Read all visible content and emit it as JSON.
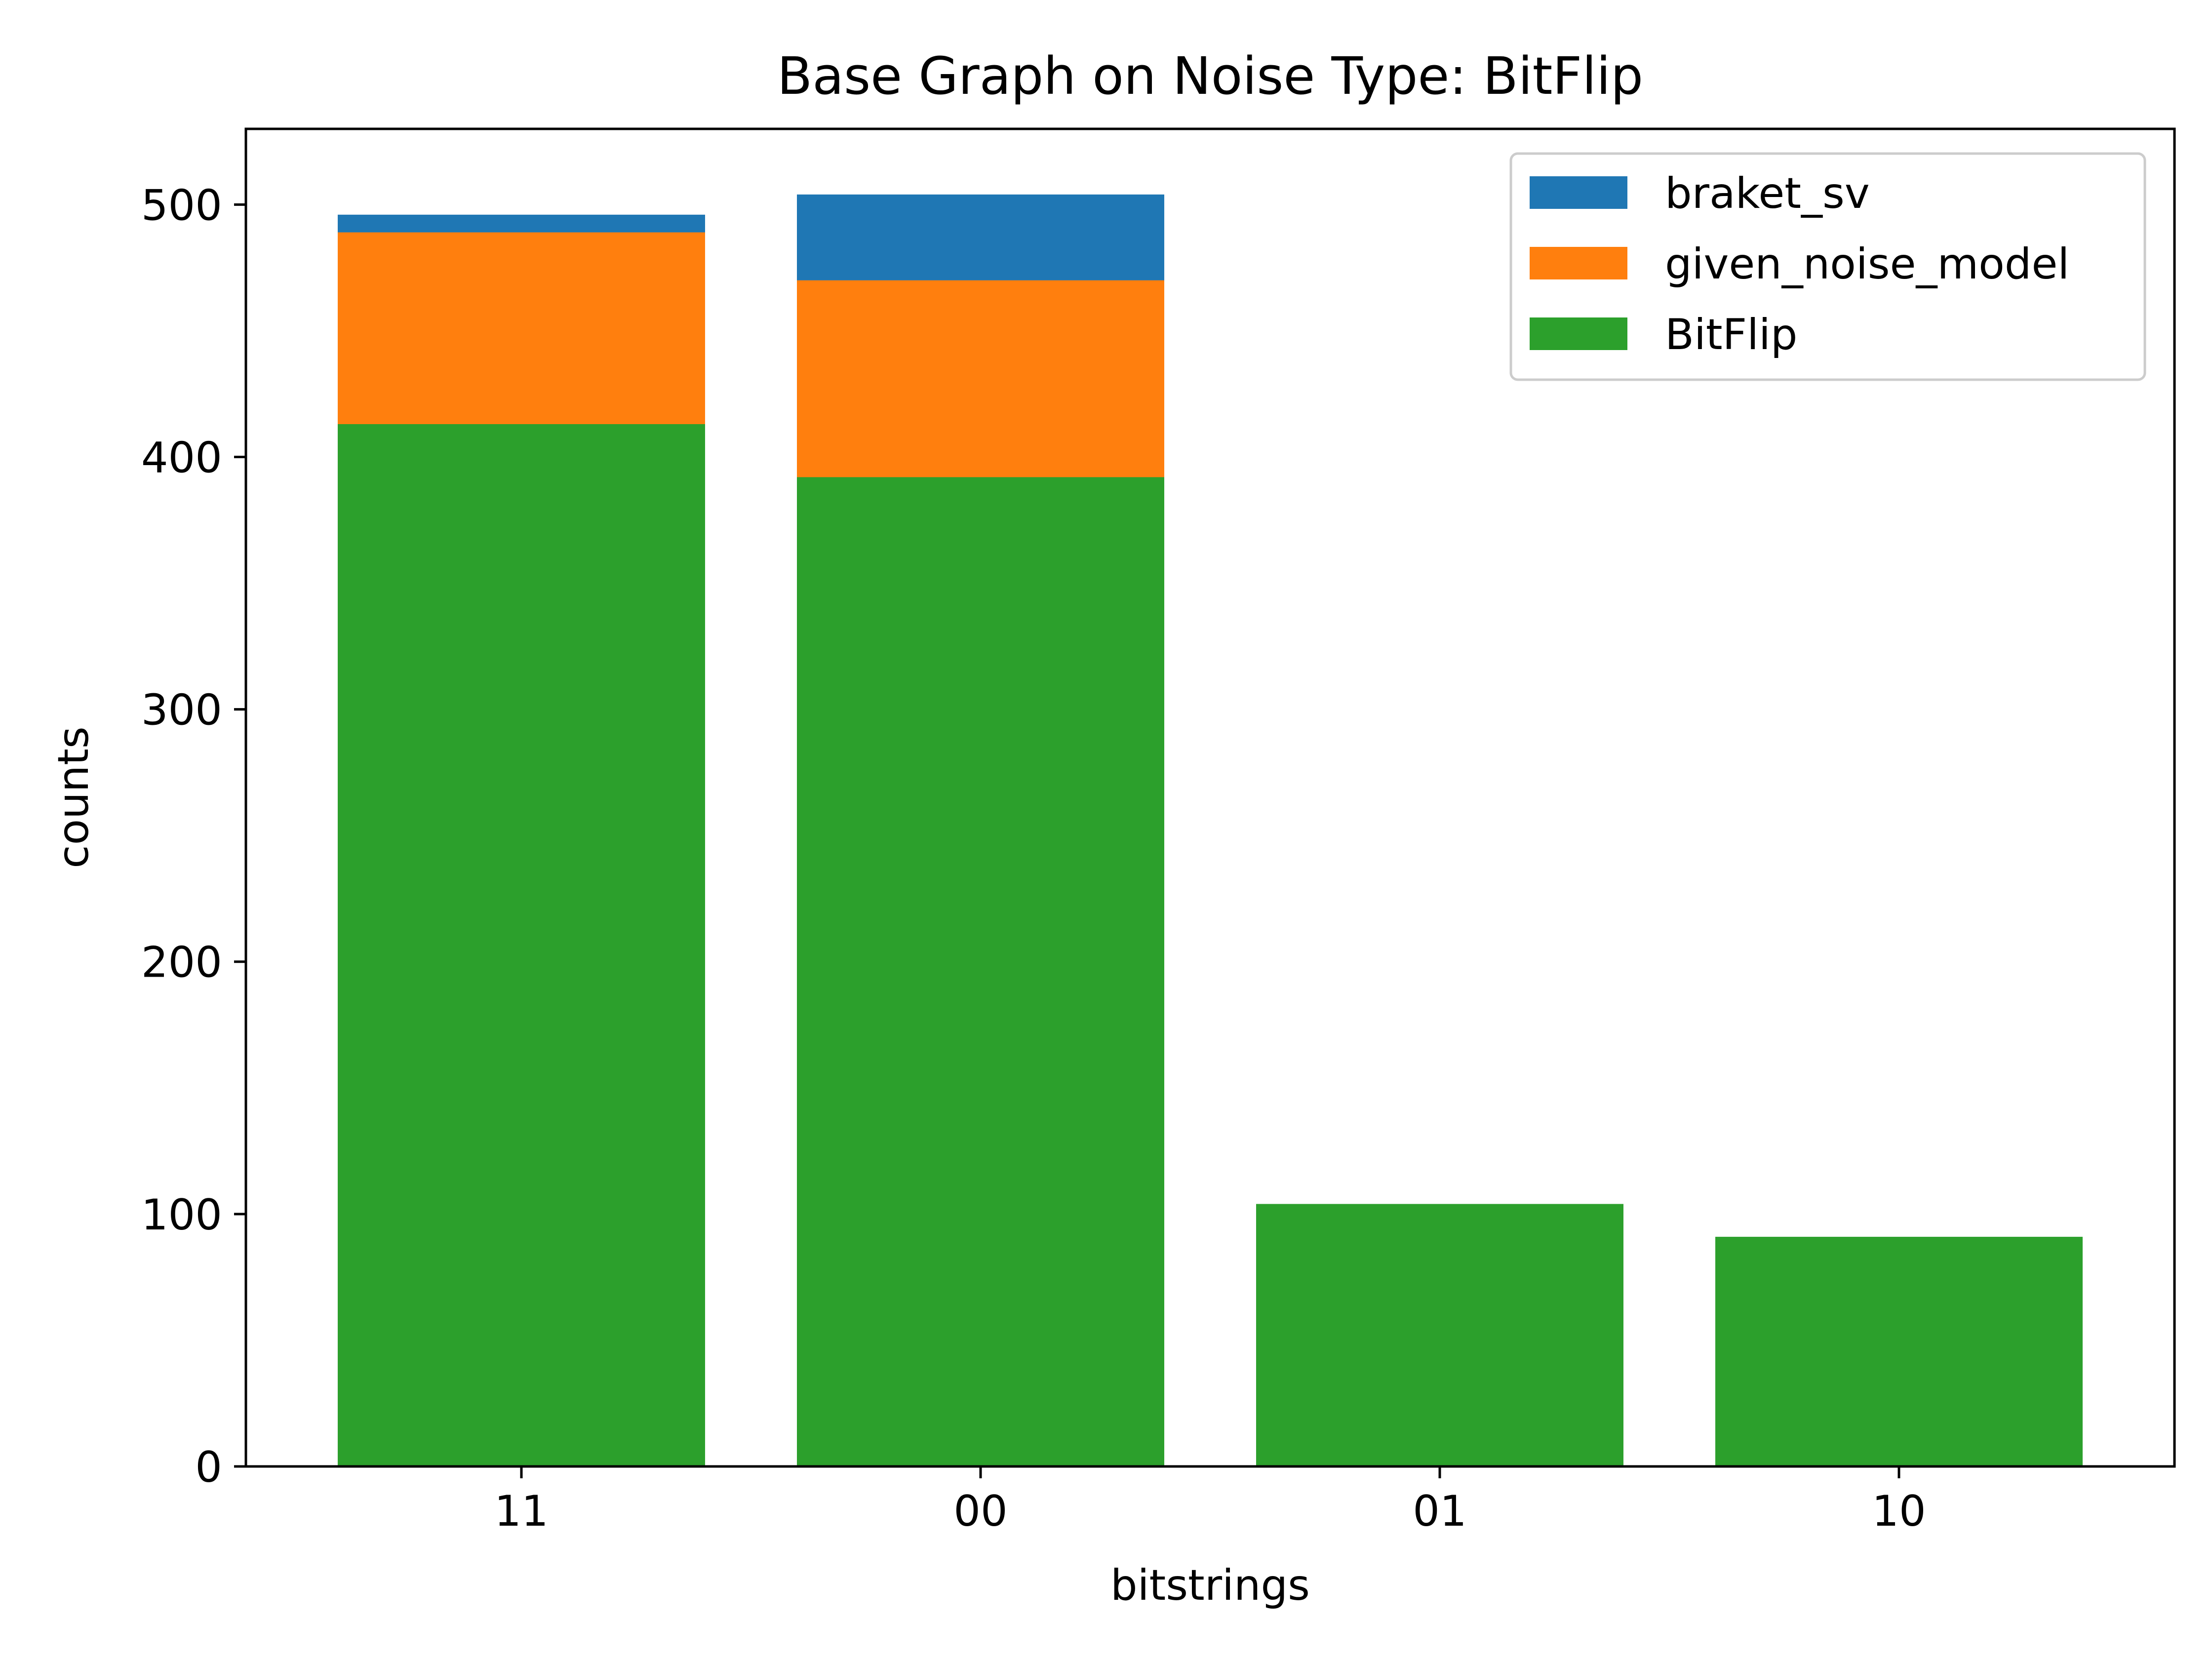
{
  "chart_data": {
    "type": "bar",
    "title": "Base Graph on Noise Type: BitFlip",
    "xlabel": "bitstrings",
    "ylabel": "counts",
    "categories": [
      "11",
      "00",
      "01",
      "10"
    ],
    "ylim": [
      0,
      530
    ],
    "yticks": [
      0,
      100,
      200,
      300,
      400,
      500
    ],
    "grid": false,
    "legend_position": "top-right",
    "series": [
      {
        "name": "braket_sv",
        "color": "#1f77b4",
        "values": [
          496,
          504,
          0,
          0
        ]
      },
      {
        "name": "given_noise_model",
        "color": "#ff7f0e",
        "values": [
          489,
          470,
          0,
          0
        ]
      },
      {
        "name": "BitFlip",
        "color": "#2ca02c",
        "values": [
          413,
          392,
          104,
          91
        ]
      }
    ]
  }
}
